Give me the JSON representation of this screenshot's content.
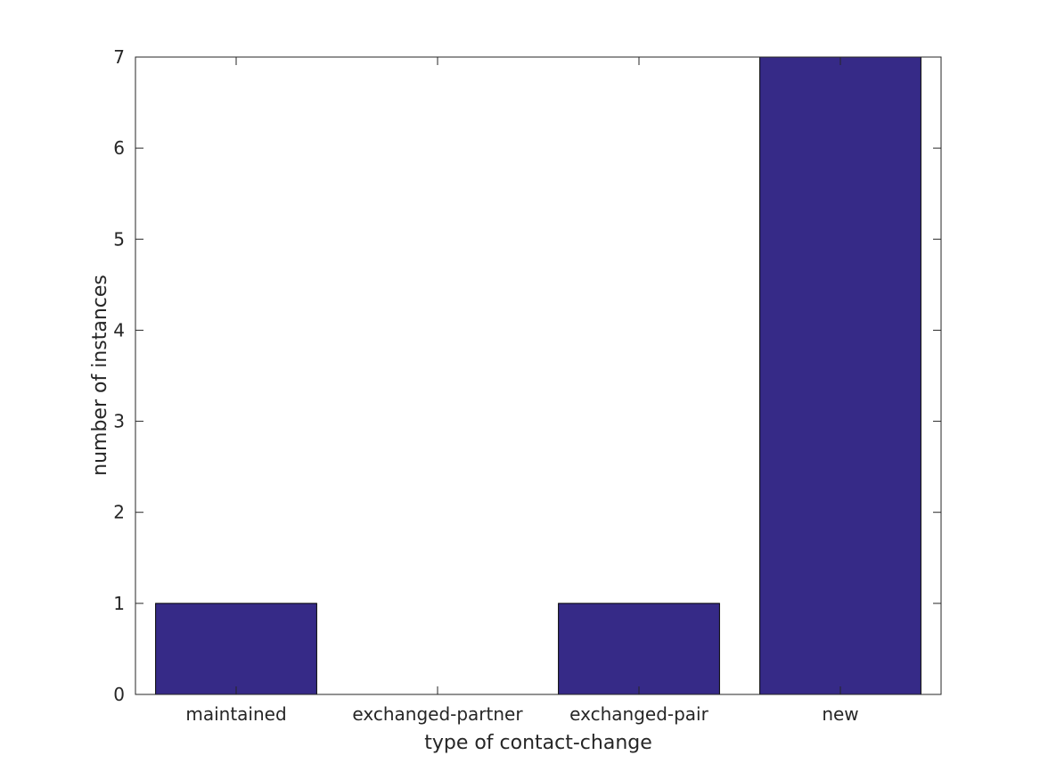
{
  "chart_data": {
    "type": "bar",
    "categories": [
      "maintained",
      "exchanged-partner",
      "exchanged-pair",
      "new"
    ],
    "values": [
      1,
      0,
      1,
      7
    ],
    "title": "",
    "xlabel": "type of contact-change",
    "ylabel": "number of instances",
    "ylim": [
      0,
      7
    ],
    "yticks": [
      0,
      1,
      2,
      3,
      4,
      5,
      6,
      7
    ],
    "grid": false,
    "bar_color": "#362a87",
    "bar_edge_color": "#000000"
  }
}
